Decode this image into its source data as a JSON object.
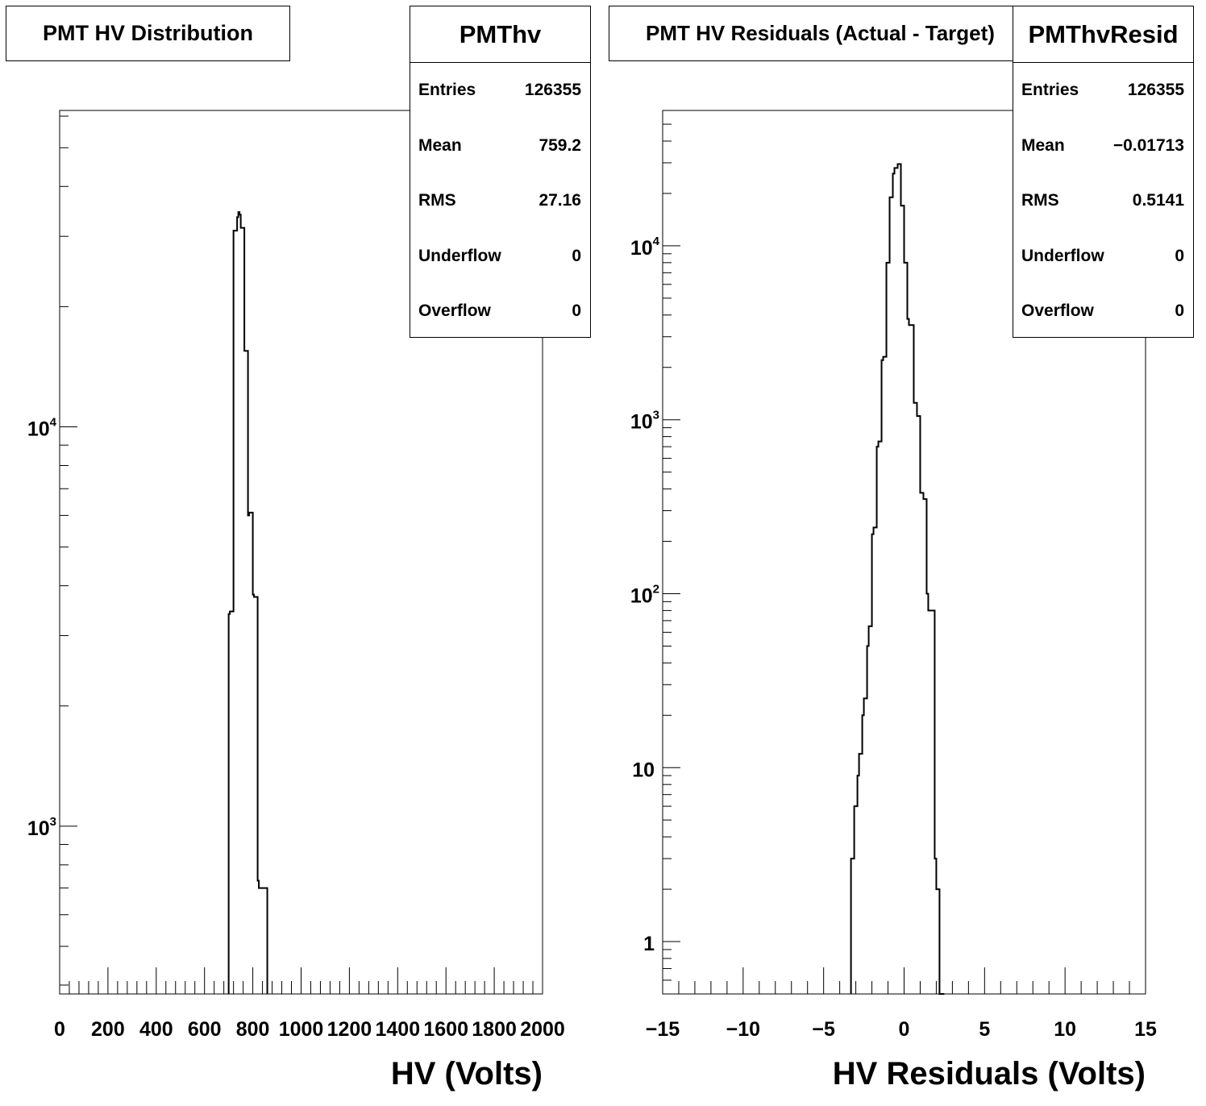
{
  "chart_data": [
    {
      "id": "left",
      "type": "histogram",
      "title": "PMT HV Distribution",
      "xlabel": "HV (Volts)",
      "ylabel": "",
      "xlim": [
        0,
        2000
      ],
      "ylim": [
        380,
        62000
      ],
      "log_y": true,
      "grid": false,
      "x_ticks": [
        0,
        200,
        400,
        600,
        800,
        1000,
        1200,
        1400,
        1600,
        1800,
        2000
      ],
      "x_tick_labels": [
        "0",
        "200",
        "400",
        "600",
        "800",
        "1000",
        "1200",
        "1400",
        "1600",
        "1800",
        "2000"
      ],
      "y_ticks": [
        1000,
        10000
      ],
      "y_tick_labels": [
        {
          "base": "10",
          "exp": "3"
        },
        {
          "base": "10",
          "exp": "4"
        }
      ],
      "bins": [
        [
          700,
          3400
        ],
        [
          705,
          3450
        ],
        [
          720,
          31000
        ],
        [
          735,
          33500
        ],
        [
          740,
          34500
        ],
        [
          745,
          34000
        ],
        [
          750,
          31500
        ],
        [
          765,
          15500
        ],
        [
          780,
          6000
        ],
        [
          785,
          6100
        ],
        [
          800,
          3800
        ],
        [
          805,
          3750
        ],
        [
          820,
          730
        ],
        [
          825,
          700
        ]
      ],
      "x_end": 860,
      "stats": {
        "name": "PMThv",
        "rows": [
          {
            "label": "Entries",
            "value": "126355"
          },
          {
            "label": "Mean",
            "value": "759.2"
          },
          {
            "label": "RMS",
            "value": "27.16"
          },
          {
            "label": "Underflow",
            "value": "0"
          },
          {
            "label": "Overflow",
            "value": "0"
          }
        ]
      }
    },
    {
      "id": "right",
      "type": "histogram",
      "title": "PMT HV Residuals (Actual - Target)",
      "xlabel": "HV Residuals (Volts)",
      "ylabel": "",
      "xlim": [
        -15,
        15
      ],
      "ylim": [
        0.5,
        60000
      ],
      "log_y": true,
      "grid": false,
      "x_ticks": [
        -15,
        -10,
        -5,
        0,
        5,
        10,
        15
      ],
      "x_tick_labels": [
        "−15",
        "−10",
        "−5",
        "0",
        "5",
        "10",
        "15"
      ],
      "y_ticks": [
        1,
        10,
        100,
        1000,
        10000
      ],
      "y_tick_labels": [
        {
          "base": "1",
          "exp": ""
        },
        {
          "base": "10",
          "exp": ""
        },
        {
          "base": "10",
          "exp": "2"
        },
        {
          "base": "10",
          "exp": "3"
        },
        {
          "base": "10",
          "exp": "4"
        }
      ],
      "bins": [
        [
          -3.3,
          3
        ],
        [
          -3.1,
          6
        ],
        [
          -2.9,
          9
        ],
        [
          -2.8,
          12
        ],
        [
          -2.6,
          20
        ],
        [
          -2.5,
          25
        ],
        [
          -2.3,
          50
        ],
        [
          -2.2,
          65
        ],
        [
          -2.0,
          220
        ],
        [
          -1.9,
          240
        ],
        [
          -1.7,
          700
        ],
        [
          -1.6,
          750
        ],
        [
          -1.4,
          2200
        ],
        [
          -1.3,
          2300
        ],
        [
          -1.1,
          8000
        ],
        [
          -0.9,
          19000
        ],
        [
          -0.7,
          26000
        ],
        [
          -0.6,
          28000
        ],
        [
          -0.4,
          29500
        ],
        [
          -0.2,
          17000
        ],
        [
          0.0,
          8000
        ],
        [
          0.2,
          3800
        ],
        [
          0.3,
          3500
        ],
        [
          0.6,
          1250
        ],
        [
          0.8,
          1050
        ],
        [
          1.0,
          380
        ],
        [
          1.2,
          350
        ],
        [
          1.4,
          100
        ],
        [
          1.5,
          80
        ],
        [
          1.9,
          3
        ],
        [
          2.0,
          2
        ],
        [
          2.2,
          0.45
        ]
      ],
      "x_end": 2.5,
      "stats": {
        "name": "PMThvResid",
        "rows": [
          {
            "label": "Entries",
            "value": "126355"
          },
          {
            "label": "Mean",
            "value": "−0.01713"
          },
          {
            "label": "RMS",
            "value": "0.5141"
          },
          {
            "label": "Underflow",
            "value": "0"
          },
          {
            "label": "Overflow",
            "value": "0"
          }
        ]
      }
    }
  ]
}
